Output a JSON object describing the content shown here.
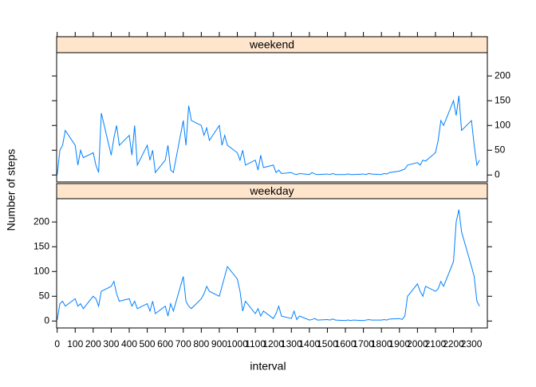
{
  "chart_data": {
    "type": "line",
    "xlabel": "interval",
    "ylabel": "Number of steps",
    "x": [
      0,
      15,
      30,
      45,
      100,
      115,
      130,
      145,
      200,
      215,
      230,
      245,
      300,
      315,
      330,
      345,
      400,
      415,
      430,
      445,
      500,
      515,
      530,
      545,
      600,
      615,
      630,
      645,
      700,
      715,
      730,
      745,
      800,
      815,
      830,
      845,
      900,
      915,
      930,
      945,
      1000,
      1015,
      1030,
      1045,
      1100,
      1115,
      1130,
      1145,
      1200,
      1215,
      1230,
      1245,
      1300,
      1315,
      1330,
      1345,
      1400,
      1415,
      1430,
      1445,
      1500,
      1515,
      1530,
      1545,
      1600,
      1615,
      1630,
      1645,
      1700,
      1715,
      1730,
      1745,
      1800,
      1815,
      1830,
      1845,
      1900,
      1915,
      1930,
      1945,
      2000,
      2015,
      2030,
      2045,
      2100,
      2115,
      2130,
      2145,
      2200,
      2215,
      2230,
      2245,
      2300,
      2315,
      2330,
      2345
    ],
    "series": [
      {
        "name": "weekend",
        "color": "#0080ff",
        "values": [
          0,
          50,
          60,
          90,
          60,
          20,
          50,
          35,
          45,
          20,
          5,
          125,
          40,
          75,
          100,
          60,
          80,
          40,
          100,
          20,
          60,
          30,
          50,
          5,
          30,
          60,
          10,
          5,
          110,
          60,
          140,
          110,
          100,
          80,
          95,
          70,
          100,
          60,
          80,
          60,
          45,
          30,
          50,
          20,
          30,
          10,
          40,
          15,
          20,
          5,
          10,
          3,
          5,
          2,
          1,
          3,
          1,
          5,
          2,
          1,
          2,
          1,
          3,
          1,
          1,
          2,
          1,
          1,
          2,
          1,
          3,
          2,
          1,
          3,
          2,
          5,
          8,
          10,
          12,
          20,
          25,
          20,
          30,
          28,
          45,
          70,
          110,
          100,
          150,
          120,
          160,
          90,
          110,
          60,
          20,
          30
        ]
      },
      {
        "name": "weekday",
        "color": "#0080ff",
        "values": [
          2,
          35,
          40,
          30,
          45,
          30,
          35,
          25,
          50,
          45,
          30,
          60,
          70,
          80,
          55,
          40,
          45,
          30,
          40,
          25,
          35,
          20,
          40,
          15,
          30,
          10,
          35,
          20,
          90,
          40,
          30,
          25,
          45,
          55,
          70,
          60,
          50,
          70,
          90,
          110,
          85,
          60,
          20,
          40,
          15,
          25,
          10,
          20,
          5,
          15,
          30,
          10,
          5,
          20,
          3,
          10,
          2,
          3,
          5,
          2,
          3,
          2,
          4,
          2,
          1,
          2,
          1,
          2,
          1,
          2,
          3,
          2,
          2,
          3,
          2,
          4,
          5,
          3,
          10,
          50,
          75,
          60,
          50,
          70,
          60,
          65,
          80,
          70,
          120,
          200,
          225,
          180,
          110,
          90,
          40,
          30
        ]
      }
    ],
    "xlim": [
      -3,
      2388
    ],
    "xticks": [
      0,
      100,
      200,
      300,
      400,
      500,
      600,
      700,
      800,
      900,
      1000,
      1100,
      1200,
      1300,
      1400,
      1500,
      1600,
      1700,
      1800,
      1900,
      2000,
      2100,
      2200,
      2300
    ],
    "ylim": [
      -14,
      247
    ],
    "yticks": [
      0,
      50,
      100,
      150,
      200
    ]
  }
}
